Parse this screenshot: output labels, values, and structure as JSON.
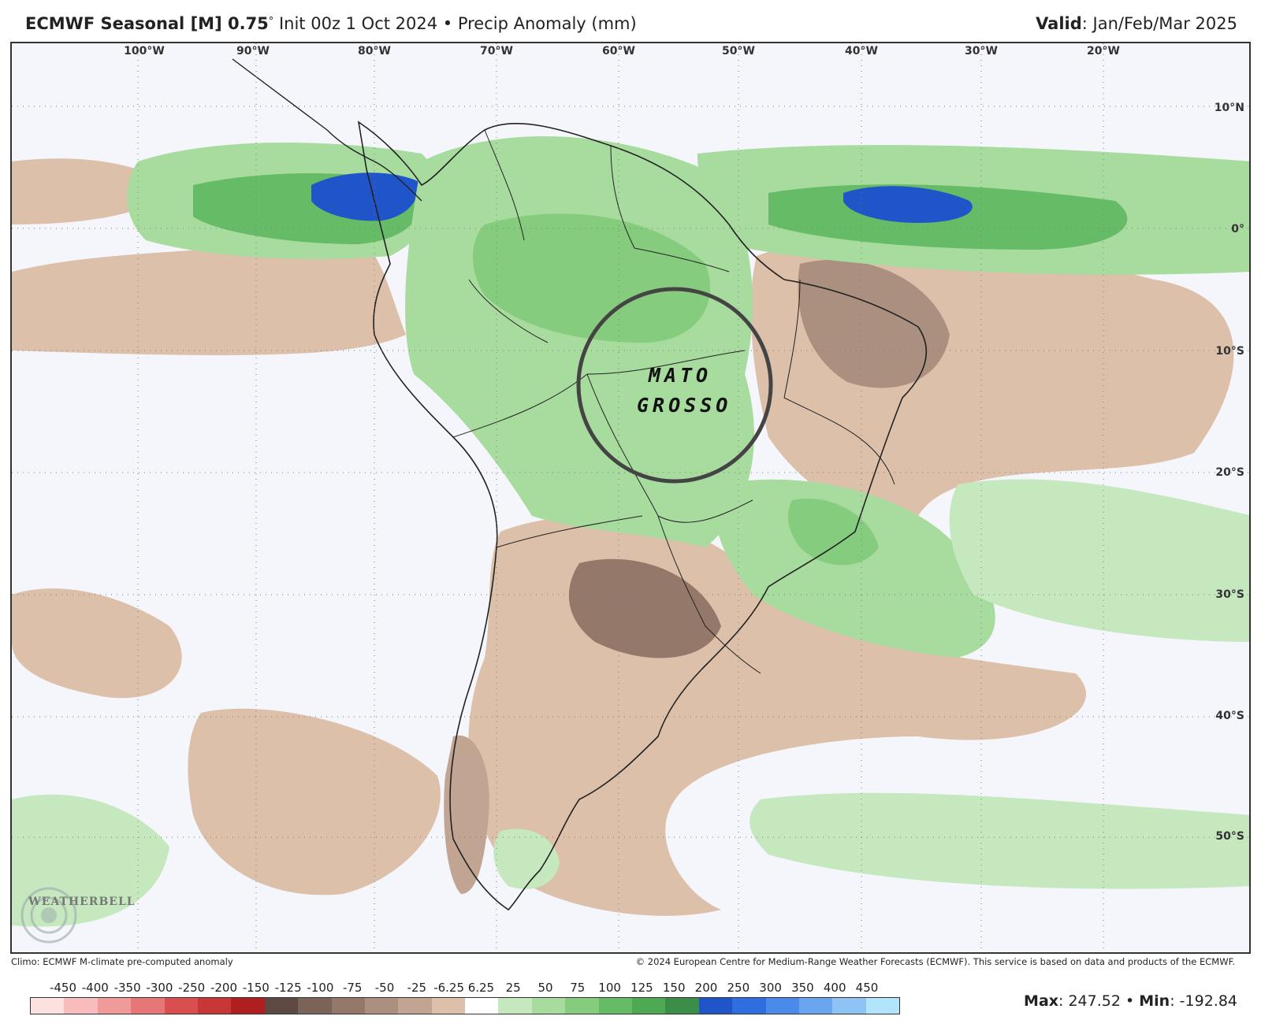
{
  "header": {
    "title_bold": "ECMWF Seasonal [M] 0.75",
    "title_degree": "°",
    "title_rest": " Init 00z 1 Oct 2024 • Precip Anomaly (mm)",
    "valid_label": "Valid",
    "valid_value": ": Jan/Feb/Mar 2025"
  },
  "map": {
    "longitude_labels": [
      "100°W",
      "90°W",
      "80°W",
      "70°W",
      "60°W",
      "50°W",
      "40°W",
      "30°W",
      "20°W"
    ],
    "latitude_labels": [
      "10°N",
      "0°",
      "10°S",
      "20°S",
      "30°S",
      "40°S",
      "50°S"
    ],
    "annotation": {
      "line1": "MATO",
      "line2": "GROSSO"
    },
    "logo_text": "WEATHERBELL"
  },
  "footer": {
    "climo_note": "Climo: ECMWF M-climate pre-computed anomaly",
    "copyright": "© 2024 European Centre for Medium-Range Weather Forecasts (ECMWF). This service is based on data and products of the ECMWF."
  },
  "legend": {
    "ticks": [
      "-450",
      "-400",
      "-350",
      "-300",
      "-250",
      "-200",
      "-150",
      "-125",
      "-100",
      "-75",
      "-50",
      "-25",
      "-6.25",
      "6.25",
      "25",
      "50",
      "75",
      "100",
      "125",
      "150",
      "200",
      "250",
      "300",
      "350",
      "400",
      "450"
    ],
    "colors": [
      "#fde0e0",
      "#f9bcbc",
      "#f19a9a",
      "#e77676",
      "#d94f4f",
      "#c93636",
      "#b01f1f",
      "#5e4a42",
      "#7a6357",
      "#94796b",
      "#ab9080",
      "#c1a592",
      "#dcc0aa",
      "#ffffff",
      "#c5e8bf",
      "#a7dc9e",
      "#86cc7e",
      "#66bb66",
      "#4ea955",
      "#3b8d47",
      "#1f55c9",
      "#2e6ee0",
      "#4a8ae8",
      "#6aa6ef",
      "#8dc3f5",
      "#b2e4fb"
    ]
  },
  "stats": {
    "max_label": "Max",
    "max_value": ": 247.52",
    "separator": " • ",
    "min_label": "Min",
    "min_value": ": -192.84"
  }
}
